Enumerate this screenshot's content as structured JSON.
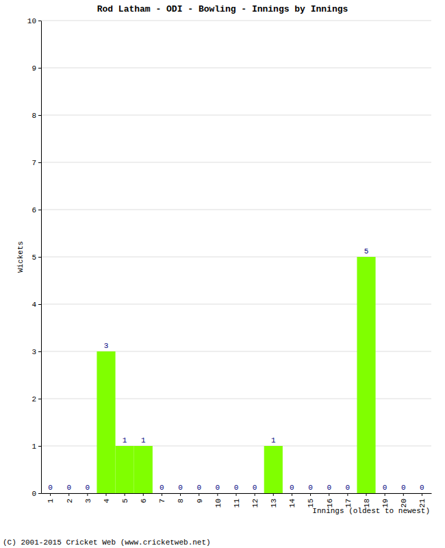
{
  "chart_data": {
    "type": "bar",
    "title": "Rod Latham - ODI - Bowling - Innings by Innings",
    "x_label": "Innings (oldest to newest)",
    "y_label": "Wickets",
    "footer": "(C) 2001-2015 Cricket Web (www.cricketweb.net)",
    "categories": [
      "1",
      "2",
      "3",
      "4",
      "5",
      "6",
      "7",
      "8",
      "9",
      "10",
      "11",
      "12",
      "13",
      "14",
      "15",
      "16",
      "17",
      "18",
      "19",
      "20",
      "21"
    ],
    "values": [
      0,
      0,
      0,
      3,
      1,
      1,
      0,
      0,
      0,
      0,
      0,
      0,
      1,
      0,
      0,
      0,
      0,
      5,
      0,
      0,
      0
    ],
    "color": "#80ff00",
    "ylim": [
      0,
      10
    ],
    "yticks": [
      0,
      1,
      2,
      3,
      4,
      5,
      6,
      7,
      8,
      9,
      10
    ],
    "grid": true,
    "data_labels": true
  }
}
